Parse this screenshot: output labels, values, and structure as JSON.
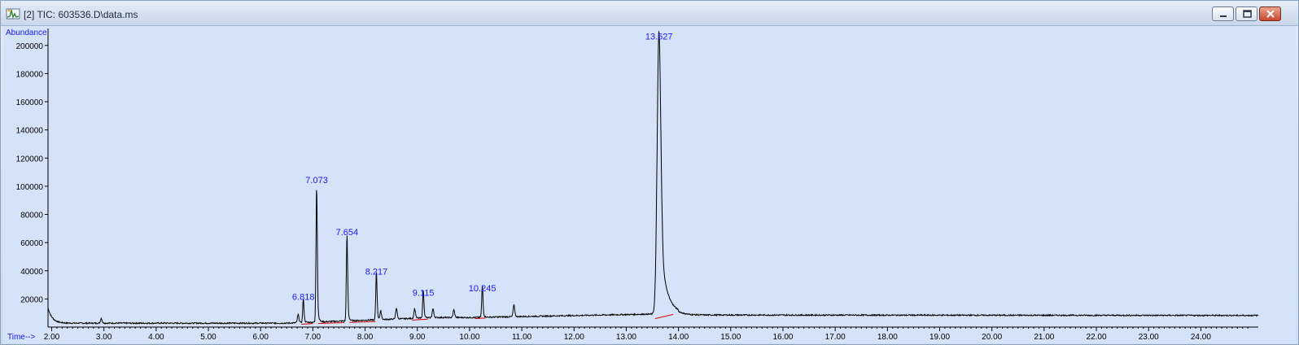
{
  "window": {
    "title": "[2] TIC: 603536.D\\data.ms",
    "icons": [
      "chromatogram-app-icon",
      "minimize-icon",
      "maximize-icon",
      "close-icon"
    ]
  },
  "colors": {
    "plot_background": "#d4e3f7",
    "trace": "#000000",
    "baseline": "#e00000",
    "labels": "#1a1aff"
  },
  "chart_data": {
    "type": "line",
    "ylabel": "Abundance",
    "xlabel": "Time-->",
    "xlim": [
      1.93,
      25.1
    ],
    "ylim": [
      0,
      212000
    ],
    "y_ticks": [
      20000,
      40000,
      60000,
      80000,
      100000,
      120000,
      140000,
      160000,
      180000,
      200000
    ],
    "y_tick_labels": [
      "20000",
      "40000",
      "60000",
      "80000",
      "100000",
      "120000",
      "140000",
      "160000",
      "180000",
      "200000"
    ],
    "x_ticks": [
      2,
      3,
      4,
      5,
      6,
      7,
      8,
      9,
      10,
      11,
      12,
      13,
      14,
      15,
      16,
      17,
      18,
      19,
      20,
      21,
      22,
      23,
      24
    ],
    "x_tick_labels": [
      "2.00",
      "3.00",
      "4.00",
      "5.00",
      "6.00",
      "7.00",
      "8.00",
      "9.00",
      "10.00",
      "11.00",
      "12.00",
      "13.00",
      "14.00",
      "15.00",
      "16.00",
      "17.00",
      "18.00",
      "19.00",
      "20.00",
      "21.00",
      "22.00",
      "23.00",
      "24.00"
    ],
    "grid": false,
    "peaks": [
      {
        "label": "6.818",
        "x": 6.818,
        "y": 17000
      },
      {
        "label": "7.073",
        "x": 7.073,
        "y": 100000
      },
      {
        "label": "7.654",
        "x": 7.654,
        "y": 63000
      },
      {
        "label": "8.217",
        "x": 8.217,
        "y": 35000
      },
      {
        "label": "9.115",
        "x": 9.115,
        "y": 20000
      },
      {
        "label": "10.245",
        "x": 10.245,
        "y": 23000
      },
      {
        "label": "13.627",
        "x": 13.627,
        "y": 202000
      }
    ],
    "minor_peaks": [
      {
        "x": 2.95,
        "y": 3500
      },
      {
        "x": 6.72,
        "y": 6000
      },
      {
        "x": 8.3,
        "y": 6000
      },
      {
        "x": 8.6,
        "y": 8000
      },
      {
        "x": 8.95,
        "y": 7000
      },
      {
        "x": 9.3,
        "y": 6500
      },
      {
        "x": 9.7,
        "y": 5500
      },
      {
        "x": 10.85,
        "y": 8500
      }
    ],
    "baseline_segments": [
      [
        6.78,
        2000,
        7.0,
        2500
      ],
      [
        7.1,
        2600,
        7.6,
        3200
      ],
      [
        7.7,
        3300,
        8.2,
        4000
      ],
      [
        8.9,
        5000,
        9.2,
        5600
      ],
      [
        10.1,
        6000,
        10.3,
        6400
      ],
      [
        13.55,
        6000,
        13.9,
        9000
      ]
    ]
  }
}
